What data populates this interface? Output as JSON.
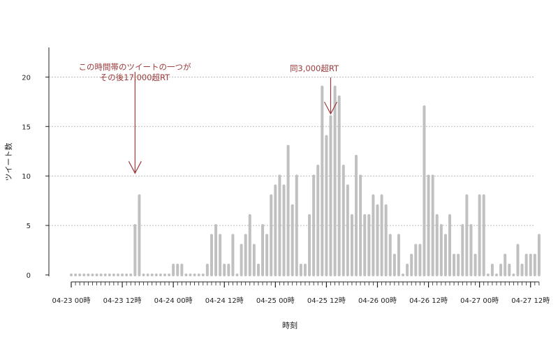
{
  "chart_data": {
    "type": "bar",
    "xlabel": "時刻",
    "ylabel": "ツイート数",
    "ylim": [
      0,
      23
    ],
    "y_ticks": [
      0,
      5,
      10,
      15,
      20
    ],
    "grid": "horizontal dotted",
    "bar_color": "#c0c0c0",
    "annotation_color": "#9b3a3a",
    "x_start": "04-23 00時",
    "bin": "1 hour",
    "x_tick_labels": [
      "04-23 00時",
      "04-23 12時",
      "04-24 00時",
      "04-24 12時",
      "04-25 00時",
      "04-25 12時",
      "04-26 00時",
      "04-26 12時",
      "04-27 00時",
      "04-27 12時"
    ],
    "values": [
      0,
      0,
      0,
      0,
      0,
      0,
      0,
      0,
      0,
      0,
      0,
      0,
      0,
      0,
      0,
      5,
      8,
      0,
      0,
      0,
      0,
      0,
      0,
      0,
      1,
      1,
      1,
      0,
      0,
      0,
      0,
      0,
      1,
      4,
      5,
      4,
      1,
      1,
      4,
      0,
      3,
      4,
      6,
      3,
      1,
      5,
      4,
      8,
      9,
      10,
      9,
      13,
      7,
      10,
      1,
      1,
      6,
      10,
      11,
      19,
      14,
      16,
      19,
      18,
      11,
      9,
      6,
      12,
      10,
      6,
      6,
      8,
      7,
      8,
      7,
      4,
      2,
      4,
      0,
      1,
      2,
      3,
      3,
      17,
      10,
      10,
      6,
      5,
      4,
      6,
      2,
      2,
      5,
      8,
      5,
      2,
      8,
      8,
      0,
      1,
      0,
      1,
      2,
      1,
      0,
      3,
      1,
      2,
      2,
      2,
      4
    ],
    "annotations": [
      {
        "lines": [
          "この時間帯のツイートの一つが",
          "その後17,000超RT"
        ],
        "x_index": 15,
        "y_tip": 10
      },
      {
        "lines": [
          "同3,000超RT"
        ],
        "x_index": 61,
        "y_tip": 16
      }
    ]
  }
}
